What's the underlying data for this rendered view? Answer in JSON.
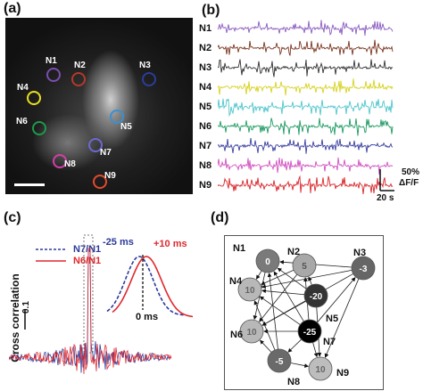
{
  "panel_labels": {
    "a": "(a)",
    "b": "(b)",
    "c": "(c)",
    "d": "(d)"
  },
  "panel_a": {
    "neurons": [
      {
        "id": "N1",
        "color": "#7a4fb0"
      },
      {
        "id": "N2",
        "color": "#b33a2a"
      },
      {
        "id": "N3",
        "color": "#2b3d9a"
      },
      {
        "id": "N4",
        "color": "#e8e020"
      },
      {
        "id": "N5",
        "color": "#3b8fd0"
      },
      {
        "id": "N6",
        "color": "#1d9a4a"
      },
      {
        "id": "N7",
        "color": "#6a6ad0"
      },
      {
        "id": "N8",
        "color": "#d43fa6"
      },
      {
        "id": "N9",
        "color": "#e24a2e"
      }
    ]
  },
  "panel_b": {
    "traces": [
      {
        "id": "N1",
        "color": "#8a5cc0"
      },
      {
        "id": "N2",
        "color": "#7a3520"
      },
      {
        "id": "N3",
        "color": "#333333"
      },
      {
        "id": "N4",
        "color": "#d6d21e"
      },
      {
        "id": "N5",
        "color": "#4fc6cc"
      },
      {
        "id": "N6",
        "color": "#1e9a63"
      },
      {
        "id": "N7",
        "color": "#3b3fa0"
      },
      {
        "id": "N8",
        "color": "#d04fc0"
      },
      {
        "id": "N9",
        "color": "#d8262c"
      }
    ],
    "scale_y": "50%",
    "scale_y_unit": "ΔF/F",
    "scale_x": "20 s"
  },
  "panel_c": {
    "ylabel": "Cross correlation",
    "scale": "0.1",
    "legend": [
      {
        "label": "N7/N1",
        "color": "#2b3a9a",
        "style": "dashed"
      },
      {
        "label": "N6/N1",
        "color": "#e0282d",
        "style": "solid"
      }
    ],
    "annot_left": "-25 ms",
    "annot_right": "+10 ms",
    "annot_zero": "0 ms"
  },
  "panel_d": {
    "nodes": [
      {
        "id": "N1",
        "value": "0",
        "fill": "#7a7a7a",
        "text": "#ffffff"
      },
      {
        "id": "N2",
        "value": "5",
        "fill": "#a8a8a8",
        "text": "#555555"
      },
      {
        "id": "N3",
        "value": "-3",
        "fill": "#666666",
        "text": "#ffffff"
      },
      {
        "id": "N4",
        "value": "10",
        "fill": "#b8b8b8",
        "text": "#666666"
      },
      {
        "id": "N5",
        "value": "-20",
        "fill": "#333333",
        "text": "#ffffff"
      },
      {
        "id": "N6",
        "value": "10",
        "fill": "#b8b8b8",
        "text": "#666666"
      },
      {
        "id": "N7",
        "value": "-25",
        "fill": "#000000",
        "text": "#ffffff"
      },
      {
        "id": "N8",
        "value": "-5",
        "fill": "#6a6a6a",
        "text": "#ffffff"
      },
      {
        "id": "N9",
        "value": "10",
        "fill": "#bdbdbd",
        "text": "#666666"
      }
    ]
  }
}
